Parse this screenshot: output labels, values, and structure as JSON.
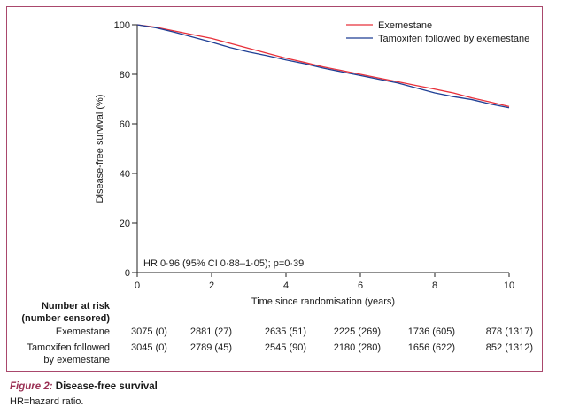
{
  "chart_data": {
    "type": "line",
    "xlabel": "Time since randomisation (years)",
    "ylabel": "Disease-free survival (%)",
    "xlim": [
      0,
      10
    ],
    "ylim": [
      0,
      100
    ],
    "x_ticks": [
      "0",
      "2",
      "4",
      "6",
      "8",
      "10"
    ],
    "y_ticks": [
      "0",
      "20",
      "40",
      "60",
      "80",
      "100"
    ],
    "grid": false,
    "legend_position": "top-right",
    "series": [
      {
        "name": "Exemestane",
        "color": "#e8303a",
        "x": [
          0,
          0.5,
          1,
          1.5,
          2,
          2.5,
          3,
          3.5,
          4,
          4.5,
          5,
          5.5,
          6,
          6.5,
          7,
          7.5,
          8,
          8.5,
          9,
          9.5,
          10
        ],
        "y": [
          100,
          99,
          97.5,
          96,
          94.5,
          92.5,
          90.5,
          88.5,
          86.5,
          84.8,
          83,
          81.5,
          80,
          78.5,
          77,
          75.5,
          74,
          72.5,
          70.5,
          68.8,
          67
        ]
      },
      {
        "name": "Tamoxifen followed by exemestane",
        "color": "#1f3f95",
        "x": [
          0,
          0.5,
          1,
          1.5,
          2,
          2.5,
          3,
          3.5,
          4,
          4.5,
          5,
          5.5,
          6,
          6.5,
          7,
          7.5,
          8,
          8.5,
          9,
          9.5,
          10
        ],
        "y": [
          100,
          98.8,
          97,
          95,
          93,
          90.8,
          89,
          87.5,
          85.8,
          84.3,
          82.5,
          81,
          79.5,
          78,
          76.5,
          74.5,
          72.5,
          71,
          69.8,
          68,
          66.5
        ]
      }
    ],
    "annotation": "HR 0·96 (95% CI 0·88–1·05); p=0·39",
    "risk_table": {
      "title_line1": "Number at risk",
      "title_line2": "(number censored)",
      "rows": [
        {
          "label_lines": [
            "Exemestane"
          ],
          "values": [
            "3075 (0)",
            "2881 (27)",
            "2635 (51)",
            "2225 (269)",
            "1736 (605)",
            "878 (1317)"
          ]
        },
        {
          "label_lines": [
            "Tamoxifen followed",
            "by exemestane"
          ],
          "values": [
            "3045 (0)",
            "2789 (45)",
            "2545 (90)",
            "2180 (280)",
            "1656 (622)",
            "852 (1312)"
          ]
        }
      ]
    }
  },
  "caption": {
    "figure_label": "Figure 2:",
    "title": "Disease-free survival",
    "note": "HR=hazard ratio."
  }
}
